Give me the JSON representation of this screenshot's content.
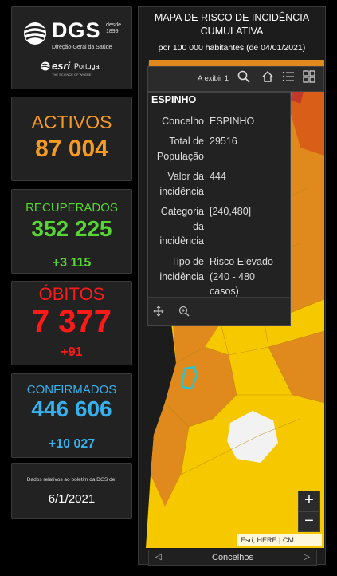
{
  "logo": {
    "org_short": "DGS",
    "desde": "desde",
    "year": "1899",
    "org_full": "Direção-Geral da Saúde",
    "partner": "esri",
    "partner_country": "Portugal",
    "partner_tagline": "THE SCIENCE OF WHERE"
  },
  "activos": {
    "label": "ACTIVOS",
    "value": "87 004"
  },
  "recuperados": {
    "label": "RECUPERADOS",
    "value": "352 225",
    "delta": "+3 115"
  },
  "obitos": {
    "label": "ÓBITOS",
    "value": "7 377",
    "delta": "+91"
  },
  "confirmados": {
    "label": "CONFIRMADOS",
    "value": "446 606",
    "delta": "+10 027"
  },
  "report": {
    "note": "Dados relativos ao boletim da DGS de:",
    "date": "6/1/2021"
  },
  "map": {
    "title": "MAPA DE RISCO DE INCIDÊNCIA CUMULATIVA",
    "subtitle": "por 100 000 habitantes (de 04/01/2021)",
    "toolbar_count": "A exibir 1",
    "attribution": "Esri, HERE | CM ...",
    "zoom_in": "+",
    "zoom_out": "−",
    "pager_label": "Concelhos",
    "icons": [
      "search-icon",
      "home-icon",
      "list-icon",
      "grid-icon",
      "move-icon",
      "zoom-to-icon"
    ],
    "colors": {
      "high": "#e08a1e",
      "very_high": "#d95f18",
      "moderate": "#f5c800",
      "extreme": "#c0392b",
      "selected": "#36c0c8"
    }
  },
  "popup": {
    "title": "ESPINHO",
    "rows": [
      {
        "key": "Concelho",
        "value": "ESPINHO"
      },
      {
        "key": "Total de População",
        "value": "29516"
      },
      {
        "key": "Valor da incidência",
        "value": "444"
      },
      {
        "key": "Categoria da incidência",
        "value": "[240,480]"
      },
      {
        "key": "Tipo de incidência",
        "value": "Risco Elevado (240 - 480 casos)"
      }
    ]
  }
}
